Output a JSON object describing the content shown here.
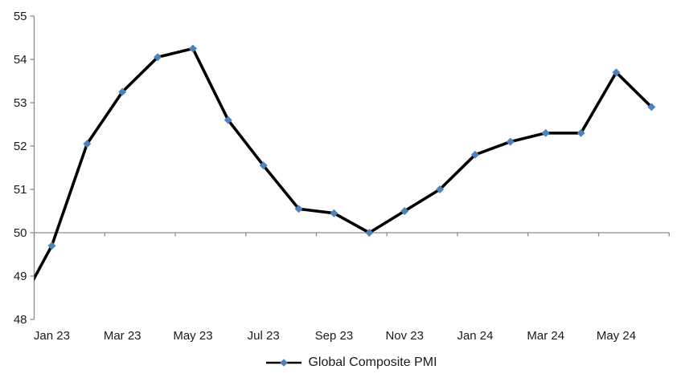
{
  "chart_data": {
    "type": "line",
    "title": "",
    "grid": false,
    "legend": {
      "position": "bottom",
      "label": "Global Composite PMI"
    },
    "series": [
      {
        "name": "Global Composite PMI",
        "line_color": "#000000",
        "marker": "diamond",
        "marker_color": "#4F81BD",
        "x": [
          "Dec 22",
          "Jan 23",
          "Feb 23",
          "Mar 23",
          "Apr 23",
          "May 23",
          "Jun 23",
          "Jul 23",
          "Aug 23",
          "Sep 23",
          "Oct 23",
          "Nov 23",
          "Dec 23",
          "Jan 24",
          "Feb 24",
          "Mar 24",
          "Apr 24",
          "May 24",
          "Jun 24"
        ],
        "values": [
          48.2,
          49.7,
          52.05,
          53.25,
          54.05,
          54.25,
          52.6,
          51.55,
          50.55,
          50.45,
          50.0,
          50.5,
          51.0,
          51.8,
          52.1,
          52.3,
          52.3,
          53.7,
          52.9
        ]
      }
    ],
    "x_axis": {
      "tick_labels": [
        "Jan 23",
        "Mar 23",
        "May 23",
        "Jul 23",
        "Sep 23",
        "Nov 23",
        "Jan 24",
        "Mar 24",
        "May 24"
      ],
      "tick_mark_every_n_categories": 2,
      "axis_crosses_at_value": 50
    },
    "y_axis": {
      "min": 48,
      "max": 55,
      "tick_interval": 1,
      "tick_labels": [
        "48",
        "49",
        "50",
        "51",
        "52",
        "53",
        "54",
        "55"
      ]
    },
    "colors": {
      "axis": "#8C8C8C",
      "text": "#1A1A1A",
      "background": "#FFFFFF"
    }
  }
}
